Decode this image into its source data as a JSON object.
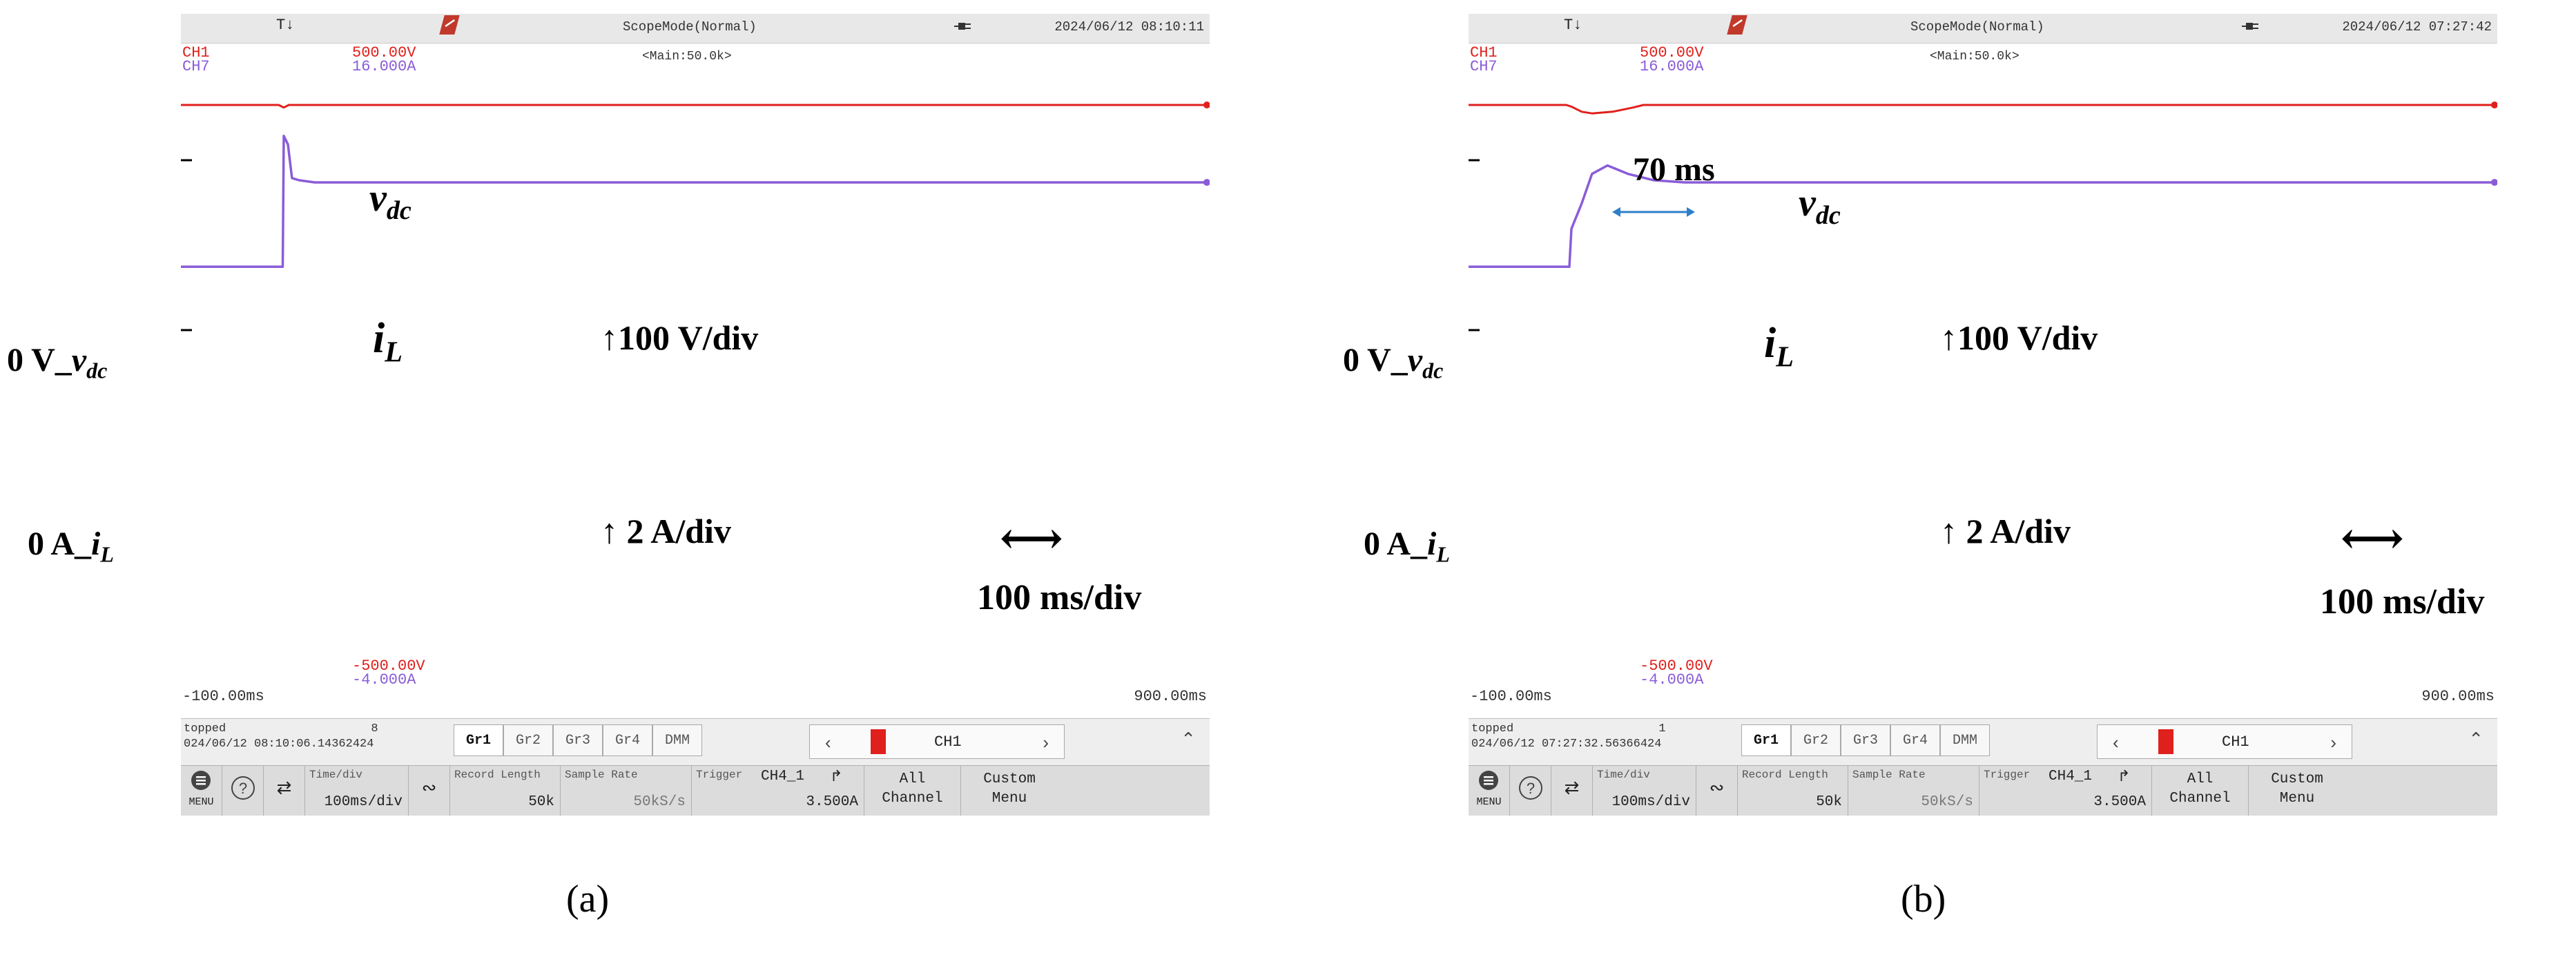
{
  "colors": {
    "ch1": "#e0201c",
    "ch7": "#8a5cd8",
    "grid": "#d4d4d4"
  },
  "panels": [
    {
      "id": "a",
      "caption": "(a)",
      "header": {
        "mode": "ScopeMode(Normal)",
        "datetime": "2024/06/12 08:10:11",
        "trigger_marker": "T↓"
      },
      "ch1": {
        "name": "CH1",
        "scale": "500.00V",
        "bottom": "-500.00V"
      },
      "ch7": {
        "name": "CH7",
        "scale": "16.000A",
        "bottom": "-4.000A"
      },
      "main_label": "<Main:50.0k>",
      "x_start": "-100.00ms",
      "x_end": "900.00ms",
      "stopped": {
        "label": "topped",
        "count": "8",
        "timestamp": "024/06/12 08:10:06.14362424"
      },
      "tabs": [
        "Gr1",
        "Gr2",
        "Gr3",
        "Gr4",
        "DMM"
      ],
      "channel_select": "CH1",
      "toolbar": {
        "menu": "MENU",
        "time_div_label": "Time/div",
        "time_div": "100ms/div",
        "record_length_label": "Record Length",
        "record_length": "50k",
        "sample_rate_label": "Sample Rate",
        "sample_rate": "50kS/s",
        "trigger_label": "Trigger",
        "trigger_source": "CH4_1",
        "trigger_level": "3.500A",
        "all_channel": "All\nChannel",
        "custom_menu": "Custom\nMenu"
      },
      "annotations": {
        "vdc_label": "v",
        "vdc_sub": "dc",
        "il_label": "i",
        "il_sub": "L",
        "vdiv": "100 V/div",
        "adiv": "2 A/div",
        "time": "100 ms/div",
        "zero_v": "0 V_",
        "zero_v_sig": "v",
        "zero_v_sub": "dc",
        "zero_a": "0 A_",
        "zero_a_sig": "i",
        "zero_a_sub": "L",
        "dip": ""
      }
    },
    {
      "id": "b",
      "caption": "(b)",
      "header": {
        "mode": "ScopeMode(Normal)",
        "datetime": "2024/06/12 07:27:42",
        "trigger_marker": "T↓"
      },
      "ch1": {
        "name": "CH1",
        "scale": "500.00V",
        "bottom": "-500.00V"
      },
      "ch7": {
        "name": "CH7",
        "scale": "16.000A",
        "bottom": "-4.000A"
      },
      "main_label": "<Main:50.0k>",
      "x_start": "-100.00ms",
      "x_end": "900.00ms",
      "stopped": {
        "label": "topped",
        "count": "1",
        "timestamp": "024/06/12 07:27:32.56366424"
      },
      "tabs": [
        "Gr1",
        "Gr2",
        "Gr3",
        "Gr4",
        "DMM"
      ],
      "channel_select": "CH1",
      "toolbar": {
        "menu": "MENU",
        "time_div_label": "Time/div",
        "time_div": "100ms/div",
        "record_length_label": "Record Length",
        "record_length": "50k",
        "sample_rate_label": "Sample Rate",
        "sample_rate": "50kS/s",
        "trigger_label": "Trigger",
        "trigger_source": "CH4_1",
        "trigger_level": "3.500A",
        "all_channel": "All\nChannel",
        "custom_menu": "Custom\nMenu"
      },
      "annotations": {
        "vdc_label": "v",
        "vdc_sub": "dc",
        "il_label": "i",
        "il_sub": "L",
        "vdiv": "100 V/div",
        "adiv": "2 A/div",
        "time": "100 ms/div",
        "zero_v": "0 V_",
        "zero_v_sig": "v",
        "zero_v_sub": "dc",
        "zero_a": "0 A_",
        "zero_a_sig": "i",
        "zero_a_sub": "L",
        "dip": "70 ms"
      }
    }
  ],
  "chart_data": [
    {
      "type": "line",
      "title": "",
      "xlabel": "",
      "ylabel": "",
      "xlim": [
        -100,
        900
      ],
      "x_unit": "ms",
      "grid": true,
      "series": [
        {
          "name": "v_dc",
          "x": [
            -100,
            -5,
            0,
            5,
            15,
            900
          ],
          "y": [
            350,
            350,
            347,
            350,
            350,
            350
          ],
          "units": "V"
        },
        {
          "name": "i_L",
          "x": [
            -100,
            -1,
            0,
            4,
            8,
            15,
            30,
            900
          ],
          "y": [
            1.5,
            1.5,
            4.6,
            4.4,
            3.6,
            3.55,
            3.5,
            3.5
          ],
          "units": "A"
        }
      ]
    },
    {
      "type": "line",
      "title": "",
      "xlabel": "",
      "ylabel": "",
      "xlim": [
        -100,
        900
      ],
      "x_unit": "ms",
      "grid": true,
      "series": [
        {
          "name": "v_dc",
          "x": [
            -100,
            -5,
            0,
            10,
            20,
            40,
            60,
            70,
            900
          ],
          "y": [
            350,
            350,
            348,
            342,
            340,
            342,
            347,
            350,
            350
          ],
          "units": "V"
        },
        {
          "name": "i_L",
          "x": [
            -100,
            -2,
            0,
            10,
            20,
            35,
            55,
            80,
            110,
            900
          ],
          "y": [
            1.5,
            1.5,
            2.4,
            3.0,
            3.7,
            3.9,
            3.7,
            3.55,
            3.5,
            3.5
          ],
          "units": "A"
        }
      ]
    }
  ]
}
